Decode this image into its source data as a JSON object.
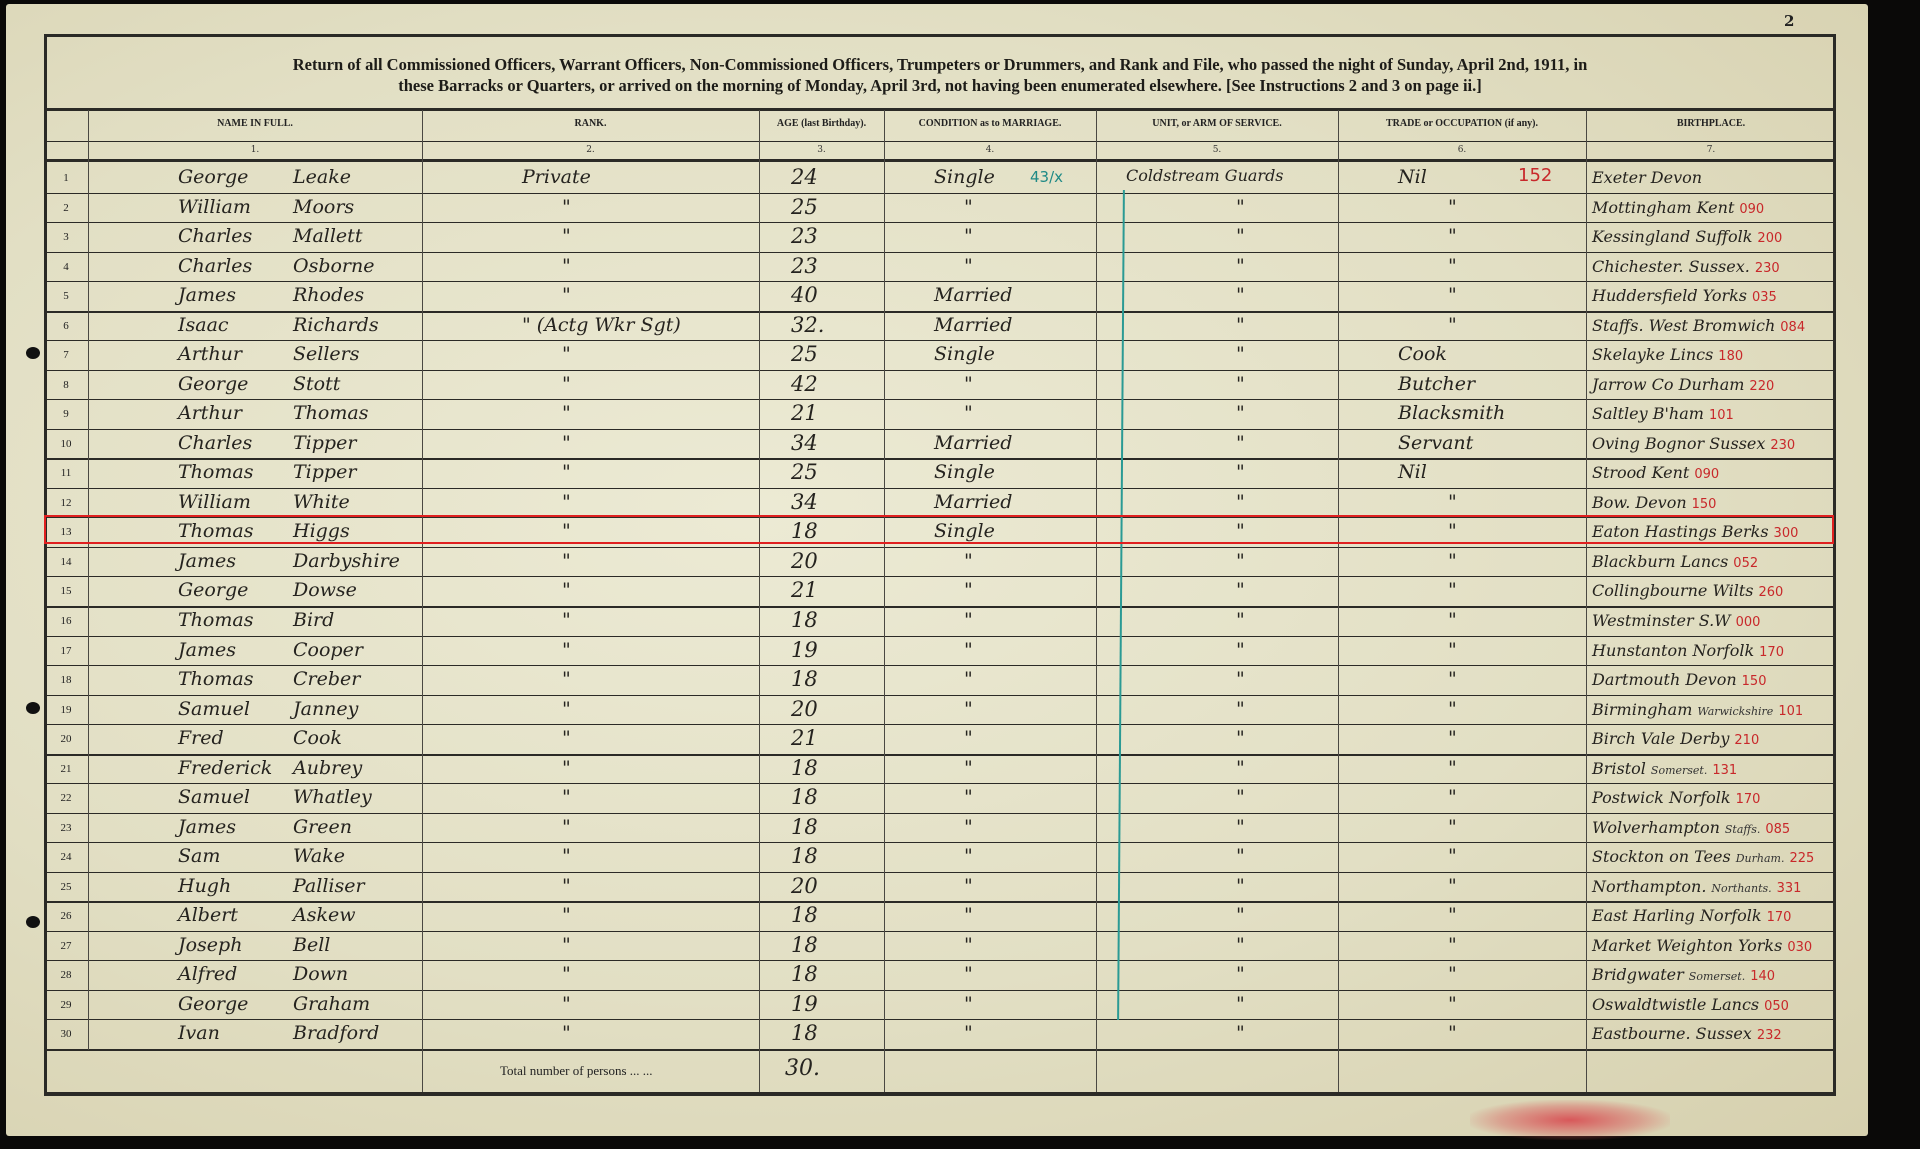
{
  "page_number": "2",
  "title_line1": "Return of all Commissioned Officers, Warrant Officers, Non-Commissioned Officers, Trumpeters or Drummers, and Rank and File, who passed the night of Sunday, April 2nd, 1911, in",
  "title_line2": "these Barracks or Quarters, or arrived on the morning of Monday, April 3rd, not having been enumerated elsewhere.  [See Instructions 2 and 3 on page ii.]",
  "columns": [
    {
      "label": "NAME IN FULL.",
      "num": "1."
    },
    {
      "label": "RANK.",
      "num": "2."
    },
    {
      "label": "AGE (last Birthday).",
      "num": "3."
    },
    {
      "label": "CONDITION as to MARRIAGE.",
      "num": "4."
    },
    {
      "label": "UNIT, or ARM OF SERVICE.",
      "num": "5."
    },
    {
      "label": "TRADE or OCCUPATION (if any).",
      "num": "6."
    },
    {
      "label": "BIRTHPLACE.",
      "num": "7."
    }
  ],
  "annotations": {
    "row1_condition_note": "43/x",
    "row1_trade_code": "152"
  },
  "highlighted_row": 13,
  "rows": [
    {
      "n": "1",
      "first": "George",
      "last": "Leake",
      "rank": "Private",
      "age": "24",
      "cond": "Single",
      "unit": "Coldstream Guards",
      "trade": "Nil",
      "birth": "Exeter  Devon",
      "code": "",
      "county": ""
    },
    {
      "n": "2",
      "first": "William",
      "last": "Moors",
      "rank": "\"",
      "age": "25",
      "cond": "\"",
      "unit": "\"",
      "trade": "\"",
      "birth": "Mottingham Kent",
      "code": "090",
      "county": ""
    },
    {
      "n": "3",
      "first": "Charles",
      "last": "Mallett",
      "rank": "\"",
      "age": "23",
      "cond": "\"",
      "unit": "\"",
      "trade": "\"",
      "birth": "Kessingland Suffolk",
      "code": "200",
      "county": ""
    },
    {
      "n": "4",
      "first": "Charles",
      "last": "Osborne",
      "rank": "\"",
      "age": "23",
      "cond": "\"",
      "unit": "\"",
      "trade": "\"",
      "birth": "Chichester. Sussex.",
      "code": "230",
      "county": ""
    },
    {
      "n": "5",
      "first": "James",
      "last": "Rhodes",
      "rank": "\"",
      "age": "40",
      "cond": "Married",
      "unit": "\"",
      "trade": "\"",
      "birth": "Huddersfield Yorks",
      "code": "035",
      "county": ""
    },
    {
      "n": "6",
      "first": "Isaac",
      "last": "Richards",
      "rank": "\" (Actg Wkr Sgt)",
      "age": "32.",
      "cond": "Married",
      "unit": "\"",
      "trade": "\"",
      "birth": "Staffs. West Bromwich",
      "code": "084",
      "county": ""
    },
    {
      "n": "7",
      "first": "Arthur",
      "last": "Sellers",
      "rank": "\"",
      "age": "25",
      "cond": "Single",
      "unit": "\"",
      "trade": "Cook",
      "birth": "Skelayke Lincs",
      "code": "180",
      "county": ""
    },
    {
      "n": "8",
      "first": "George",
      "last": "Stott",
      "rank": "\"",
      "age": "42",
      "cond": "\"",
      "unit": "\"",
      "trade": "Butcher",
      "birth": "Jarrow Co Durham",
      "code": "220",
      "county": ""
    },
    {
      "n": "9",
      "first": "Arthur",
      "last": "Thomas",
      "rank": "\"",
      "age": "21",
      "cond": "\"",
      "unit": "\"",
      "trade": "Blacksmith",
      "birth": "Saltley B'ham",
      "code": "101",
      "county": ""
    },
    {
      "n": "10",
      "first": "Charles",
      "last": "Tipper",
      "rank": "\"",
      "age": "34",
      "cond": "Married",
      "unit": "\"",
      "trade": "Servant",
      "birth": "Oving Bognor Sussex",
      "code": "230",
      "county": ""
    },
    {
      "n": "11",
      "first": "Thomas",
      "last": "Tipper",
      "rank": "\"",
      "age": "25",
      "cond": "Single",
      "unit": "\"",
      "trade": "Nil",
      "birth": "Strood Kent",
      "code": "090",
      "county": ""
    },
    {
      "n": "12",
      "first": "William",
      "last": "White",
      "rank": "\"",
      "age": "34",
      "cond": "Married",
      "unit": "\"",
      "trade": "\"",
      "birth": "Bow.   Devon",
      "code": "150",
      "county": ""
    },
    {
      "n": "13",
      "first": "Thomas",
      "last": "Higgs",
      "rank": "\"",
      "age": "18",
      "cond": "Single",
      "unit": "\"",
      "trade": "\"",
      "birth": "Eaton Hastings Berks",
      "code": "300",
      "county": ""
    },
    {
      "n": "14",
      "first": "James",
      "last": "Darbyshire",
      "rank": "\"",
      "age": "20",
      "cond": "\"",
      "unit": "\"",
      "trade": "\"",
      "birth": "Blackburn Lancs",
      "code": "052",
      "county": ""
    },
    {
      "n": "15",
      "first": "George",
      "last": "Dowse",
      "rank": "\"",
      "age": "21",
      "cond": "\"",
      "unit": "\"",
      "trade": "\"",
      "birth": "Collingbourne Wilts",
      "code": "260",
      "county": ""
    },
    {
      "n": "16",
      "first": "Thomas",
      "last": "Bird",
      "rank": "\"",
      "age": "18",
      "cond": "\"",
      "unit": "\"",
      "trade": "\"",
      "birth": "Westminster S.W",
      "code": "000",
      "county": ""
    },
    {
      "n": "17",
      "first": "James",
      "last": "Cooper",
      "rank": "\"",
      "age": "19",
      "cond": "\"",
      "unit": "\"",
      "trade": "\"",
      "birth": "Hunstanton Norfolk",
      "code": "170",
      "county": ""
    },
    {
      "n": "18",
      "first": "Thomas",
      "last": "Creber",
      "rank": "\"",
      "age": "18",
      "cond": "\"",
      "unit": "\"",
      "trade": "\"",
      "birth": "Dartmouth Devon",
      "code": "150",
      "county": ""
    },
    {
      "n": "19",
      "first": "Samuel",
      "last": "Janney",
      "rank": "\"",
      "age": "20",
      "cond": "\"",
      "unit": "\"",
      "trade": "\"",
      "birth": "Birmingham",
      "code": "101",
      "county": "Warwickshire"
    },
    {
      "n": "20",
      "first": "Fred",
      "last": "Cook",
      "rank": "\"",
      "age": "21",
      "cond": "\"",
      "unit": "\"",
      "trade": "\"",
      "birth": "Birch Vale Derby",
      "code": "210",
      "county": ""
    },
    {
      "n": "21",
      "first": "Frederick",
      "last": "Aubrey",
      "rank": "\"",
      "age": "18",
      "cond": "\"",
      "unit": "\"",
      "trade": "\"",
      "birth": "Bristol",
      "code": "131",
      "county": "Somerset."
    },
    {
      "n": "22",
      "first": "Samuel",
      "last": "Whatley",
      "rank": "\"",
      "age": "18",
      "cond": "\"",
      "unit": "\"",
      "trade": "\"",
      "birth": "Postwick Norfolk",
      "code": "170",
      "county": ""
    },
    {
      "n": "23",
      "first": "James",
      "last": "Green",
      "rank": "\"",
      "age": "18",
      "cond": "\"",
      "unit": "\"",
      "trade": "\"",
      "birth": "Wolverhampton",
      "code": "085",
      "county": "Staffs."
    },
    {
      "n": "24",
      "first": "Sam",
      "last": "Wake",
      "rank": "\"",
      "age": "18",
      "cond": "\"",
      "unit": "\"",
      "trade": "\"",
      "birth": "Stockton on Tees",
      "code": "225",
      "county": "Durham."
    },
    {
      "n": "25",
      "first": "Hugh",
      "last": "Palliser",
      "rank": "\"",
      "age": "20",
      "cond": "\"",
      "unit": "\"",
      "trade": "\"",
      "birth": "Northampton.",
      "code": "331",
      "county": "Northants."
    },
    {
      "n": "26",
      "first": "Albert",
      "last": "Askew",
      "rank": "\"",
      "age": "18",
      "cond": "\"",
      "unit": "\"",
      "trade": "\"",
      "birth": "East Harling Norfolk",
      "code": "170",
      "county": ""
    },
    {
      "n": "27",
      "first": "Joseph",
      "last": "Bell",
      "rank": "\"",
      "age": "18",
      "cond": "\"",
      "unit": "\"",
      "trade": "\"",
      "birth": "Market Weighton Yorks",
      "code": "030",
      "county": ""
    },
    {
      "n": "28",
      "first": "Alfred",
      "last": "Down",
      "rank": "\"",
      "age": "18",
      "cond": "\"",
      "unit": "\"",
      "trade": "\"",
      "birth": "Bridgwater",
      "code": "140",
      "county": "Somerset."
    },
    {
      "n": "29",
      "first": "George",
      "last": "Graham",
      "rank": "\"",
      "age": "19",
      "cond": "\"",
      "unit": "\"",
      "trade": "\"",
      "birth": "Oswaldtwistle Lancs",
      "code": "050",
      "county": ""
    },
    {
      "n": "30",
      "first": "Ivan",
      "last": "Bradford",
      "rank": "\"",
      "age": "18",
      "cond": "\"",
      "unit": "\"",
      "trade": "\"",
      "birth": "Eastbourne. Sussex",
      "code": "232",
      "county": ""
    }
  ],
  "total": {
    "label": "Total number of persons    ...    ...",
    "value": "30."
  },
  "colors": {
    "paper": "#e6e2c8",
    "ink": "#25231f",
    "red_ink": "#c8282a",
    "teal_ink": "#1f8a86",
    "highlight": "#e02020"
  }
}
